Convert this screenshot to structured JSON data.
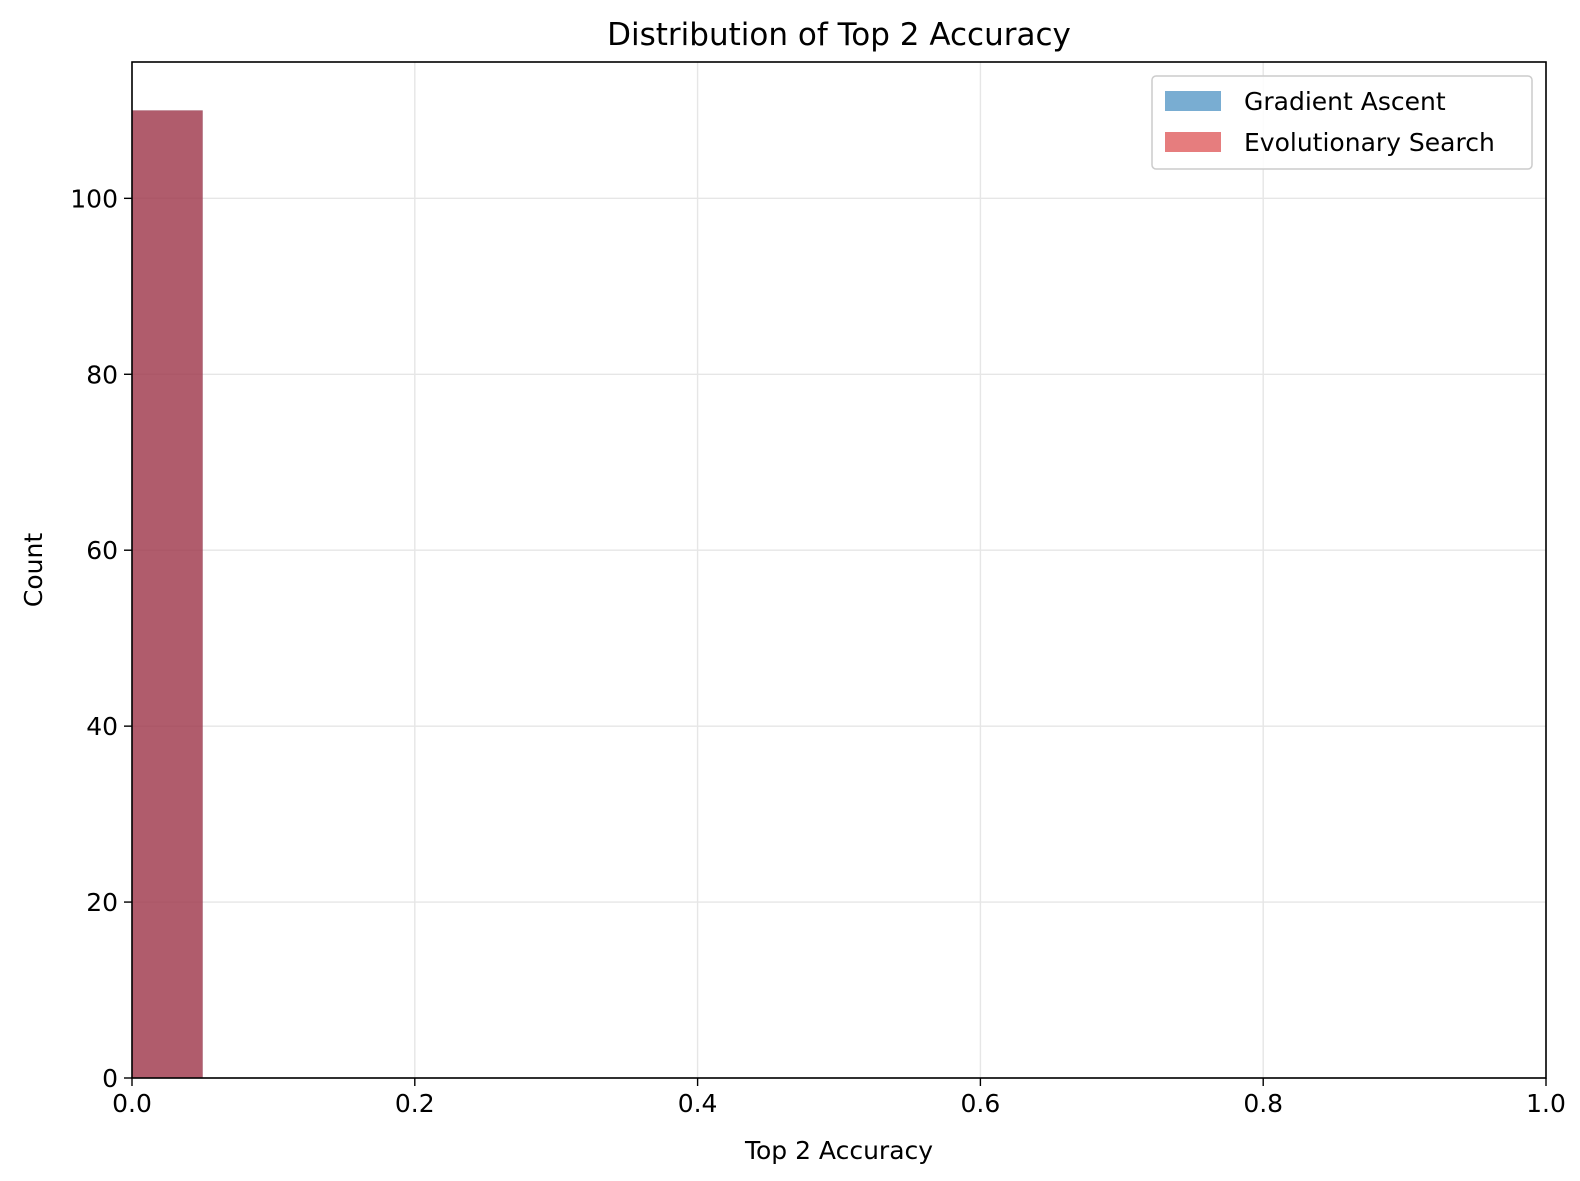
{
  "chart_data": {
    "type": "bar",
    "title": "Distribution of Top 2 Accuracy",
    "xlabel": "Top 2 Accuracy",
    "ylabel": "Count",
    "xlim": [
      0.0,
      1.0
    ],
    "ylim": [
      0,
      115.5
    ],
    "x_ticks": [
      "0.0",
      "0.2",
      "0.4",
      "0.6",
      "0.8",
      "1.0"
    ],
    "y_ticks": [
      "0",
      "20",
      "40",
      "60",
      "80",
      "100"
    ],
    "grid": true,
    "legend_position": "top-right",
    "series": [
      {
        "name": "Gradient Ascent",
        "color": "#1f77b4",
        "bins": [
          {
            "x_start": 0.0,
            "x_end": 0.05,
            "count": 110
          }
        ]
      },
      {
        "name": "Evolutionary Search",
        "color": "#d62728",
        "bins": [
          {
            "x_start": 0.0,
            "x_end": 0.05,
            "count": 110
          }
        ]
      }
    ]
  }
}
